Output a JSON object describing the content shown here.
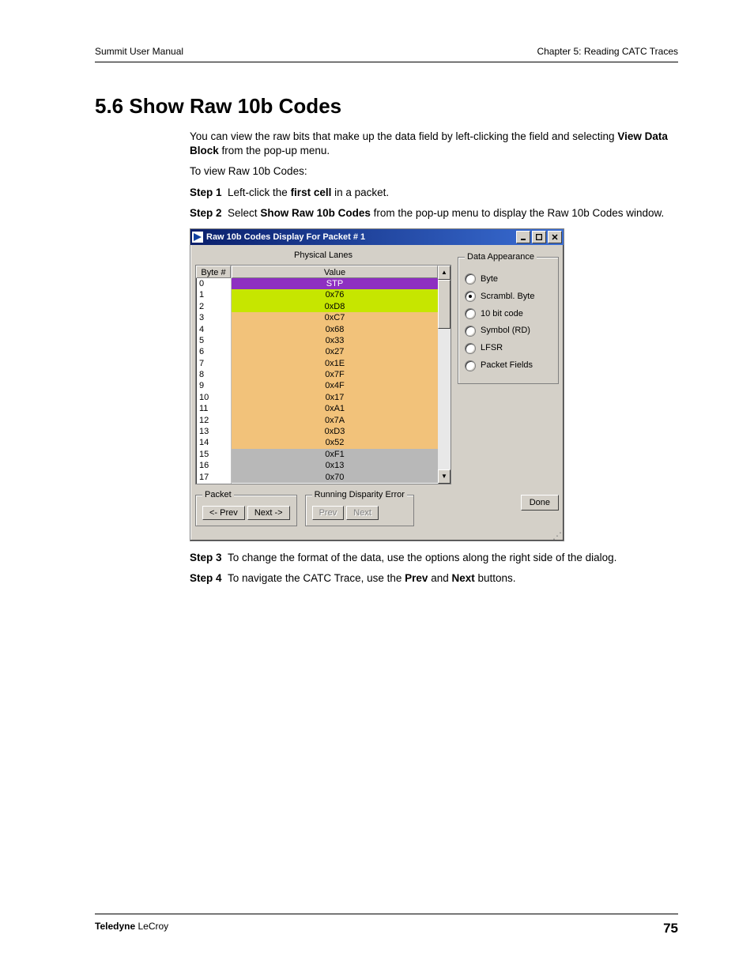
{
  "header": {
    "left": "Summit User Manual",
    "right": "Chapter 5: Reading CATC Traces"
  },
  "section": {
    "number": "5.6",
    "title": "Show Raw 10b Codes"
  },
  "intro": {
    "p1a": "You can view the raw bits that make up the data field by left-clicking the field and selecting ",
    "p1b": "View Data Block",
    "p1c": " from the pop-up menu.",
    "p2": "To view Raw 10b Codes:"
  },
  "steps": {
    "s1": {
      "label": "Step 1",
      "a": "Left-click the ",
      "b": "first cell",
      "c": " in a packet."
    },
    "s2": {
      "label": "Step 2",
      "a": "Select ",
      "b": "Show Raw 10b Codes",
      "c": " from the pop-up menu to display the Raw 10b Codes window."
    },
    "s3": {
      "label": "Step 3",
      "text": "To change the format of the data, use the options along the right side of the dialog."
    },
    "s4": {
      "label": "Step 4",
      "a": "To navigate the CATC Trace, use the ",
      "b": "Prev",
      "c": " and ",
      "d": "Next",
      "e": " buttons."
    }
  },
  "dialog": {
    "title": "Raw 10b Codes Display For Packet # 1",
    "physical_lanes_label": "Physical Lanes",
    "columns": {
      "byte": "Byte #",
      "value": "Value"
    },
    "rows": [
      {
        "byte": "0",
        "value": "STP",
        "bg": "#8e2fc1",
        "fg": "#ffffff"
      },
      {
        "byte": "1",
        "value": "0x76",
        "bg": "#c6e600",
        "fg": "#000000"
      },
      {
        "byte": "2",
        "value": "0xD8",
        "bg": "#c6e600",
        "fg": "#000000"
      },
      {
        "byte": "3",
        "value": "0xC7",
        "bg": "#f2c27a",
        "fg": "#000000"
      },
      {
        "byte": "4",
        "value": "0x68",
        "bg": "#f2c27a",
        "fg": "#000000"
      },
      {
        "byte": "5",
        "value": "0x33",
        "bg": "#f2c27a",
        "fg": "#000000"
      },
      {
        "byte": "6",
        "value": "0x27",
        "bg": "#f2c27a",
        "fg": "#000000"
      },
      {
        "byte": "7",
        "value": "0x1E",
        "bg": "#f2c27a",
        "fg": "#000000"
      },
      {
        "byte": "8",
        "value": "0x7F",
        "bg": "#f2c27a",
        "fg": "#000000"
      },
      {
        "byte": "9",
        "value": "0x4F",
        "bg": "#f2c27a",
        "fg": "#000000"
      },
      {
        "byte": "10",
        "value": "0x17",
        "bg": "#f2c27a",
        "fg": "#000000"
      },
      {
        "byte": "11",
        "value": "0xA1",
        "bg": "#f2c27a",
        "fg": "#000000"
      },
      {
        "byte": "12",
        "value": "0x7A",
        "bg": "#f2c27a",
        "fg": "#000000"
      },
      {
        "byte": "13",
        "value": "0xD3",
        "bg": "#f2c27a",
        "fg": "#000000"
      },
      {
        "byte": "14",
        "value": "0x52",
        "bg": "#f2c27a",
        "fg": "#000000"
      },
      {
        "byte": "15",
        "value": "0xF1",
        "bg": "#b8b8b8",
        "fg": "#000000"
      },
      {
        "byte": "16",
        "value": "0x13",
        "bg": "#b8b8b8",
        "fg": "#000000"
      },
      {
        "byte": "17",
        "value": "0x70",
        "bg": "#b8b8b8",
        "fg": "#000000"
      }
    ],
    "appearance": {
      "legend": "Data Appearance",
      "options": [
        {
          "label": "Byte",
          "selected": false
        },
        {
          "label": "Scrambl. Byte",
          "selected": true
        },
        {
          "label": "10 bit code",
          "selected": false
        },
        {
          "label": "Symbol (RD)",
          "selected": false
        },
        {
          "label": "LFSR",
          "selected": false
        },
        {
          "label": "Packet Fields",
          "selected": false
        }
      ]
    },
    "packet_group": {
      "legend": "Packet",
      "prev": "<- Prev",
      "next": "Next ->"
    },
    "rde_group": {
      "legend": "Running Disparity Error",
      "prev": "Prev",
      "next": "Next"
    },
    "done": "Done"
  },
  "footer": {
    "company_bold": "Teledyne",
    "company_rest": " LeCroy",
    "page": "75"
  }
}
